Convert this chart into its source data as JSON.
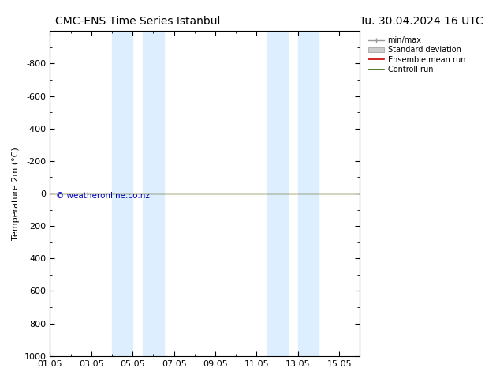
{
  "title_left": "CMC-ENS Time Series Istanbul",
  "title_right": "Tu. 30.04.2024 16 UTC",
  "ylabel": "Temperature 2m (°C)",
  "ylim": [
    -1000,
    1000
  ],
  "yticks": [
    -800,
    -600,
    -400,
    -200,
    0,
    200,
    400,
    600,
    800,
    1000
  ],
  "xtick_labels": [
    "01.05",
    "03.05",
    "05.05",
    "07.05",
    "09.05",
    "11.05",
    "13.05",
    "15.05"
  ],
  "xtick_positions": [
    0,
    2,
    4,
    6,
    8,
    10,
    12,
    14
  ],
  "xlim": [
    0,
    15
  ],
  "shaded_bands": [
    {
      "x_start": 3.0,
      "x_end": 4.0
    },
    {
      "x_start": 4.5,
      "x_end": 5.5
    },
    {
      "x_start": 10.5,
      "x_end": 11.5
    },
    {
      "x_start": 12.0,
      "x_end": 13.0
    }
  ],
  "control_run_y": 0,
  "ensemble_mean_y": 0,
  "watermark": "© weatheronline.co.nz",
  "watermark_color": "#0000bb",
  "bg_color": "#ffffff",
  "plot_bg_color": "#ffffff",
  "shaded_color": "#ddeeff",
  "control_run_color": "#336600",
  "ensemble_mean_color": "#cc0000",
  "minmax_color": "#999999",
  "stddev_color": "#cccccc",
  "legend_labels": [
    "min/max",
    "Standard deviation",
    "Ensemble mean run",
    "Controll run"
  ],
  "legend_colors": [
    "#999999",
    "#cccccc",
    "#cc0000",
    "#336600"
  ],
  "title_fontsize": 10,
  "axis_fontsize": 8,
  "tick_fontsize": 8
}
